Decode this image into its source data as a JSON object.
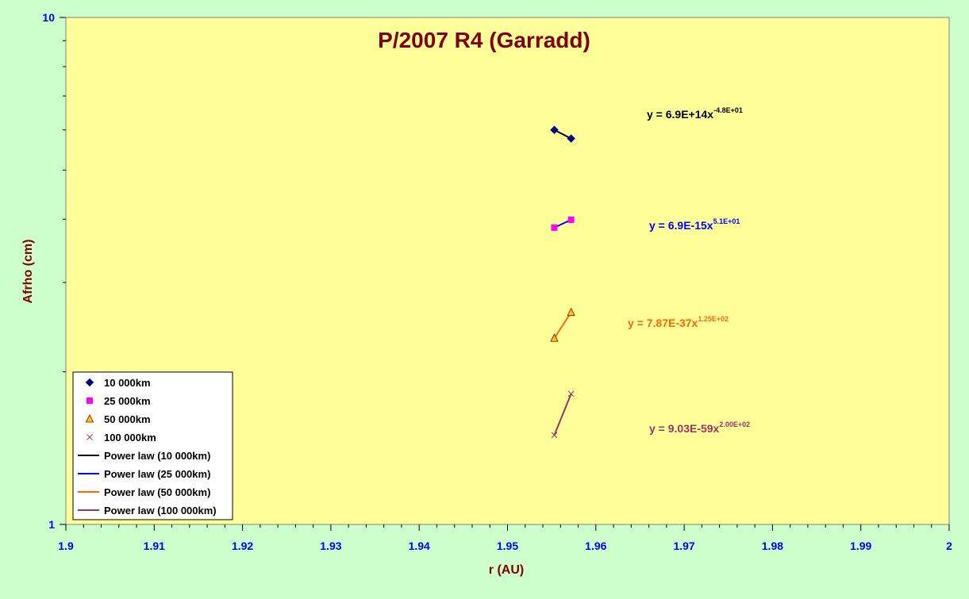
{
  "chart_data": {
    "type": "scatter",
    "title": "P/2007 R4 (Garradd)",
    "xlabel": "r (AU)",
    "ylabel": "Afrho (cm)",
    "xlim": [
      1.9,
      2.0
    ],
    "ylim": [
      1,
      10
    ],
    "yscale": "log",
    "xticks": [
      "1.9",
      "1.91",
      "1.92",
      "1.93",
      "1.94",
      "1.95",
      "1.96",
      "1.97",
      "1.98",
      "1.99",
      "2"
    ],
    "yticks": [
      "1",
      "10"
    ],
    "grid": false,
    "legend_position": "bottom-left",
    "series": [
      {
        "name": "10 000km",
        "marker": "diamond",
        "color": "#000080",
        "x": [
          1.9553,
          1.9572
        ],
        "y": [
          6.0,
          5.77
        ],
        "trend_name": "Power law (10 000km)",
        "trend_color": "#000000",
        "equation": {
          "base": "y = 6.9E+14x",
          "exponent": "-4.8E+01"
        }
      },
      {
        "name": "25 000km",
        "marker": "square",
        "color": "#ff00ff",
        "x": [
          1.9553,
          1.9572
        ],
        "y": [
          3.85,
          3.99
        ],
        "trend_name": "Power law (25 000km)",
        "trend_color": "#0000ff",
        "equation": {
          "base": "y = 6.9E-15x",
          "exponent": "5.1E+01"
        }
      },
      {
        "name": "50 000km",
        "marker": "triangle",
        "color": "#ffcc00",
        "x": [
          1.9553,
          1.9572
        ],
        "y": [
          2.33,
          2.62
        ],
        "trend_name": "Power law (50 000km)",
        "trend_color": "#ff6600",
        "equation": {
          "base": "y = 7.87E-37x",
          "exponent": "1.25E+02"
        }
      },
      {
        "name": "100 000km",
        "marker": "x",
        "color": "#993366",
        "x": [
          1.9553,
          1.9572
        ],
        "y": [
          1.5,
          1.81
        ],
        "trend_name": "Power law (100 000km)",
        "trend_color": "#993366",
        "equation": {
          "base": "y = 9.03E-59x",
          "exponent": "2.00E+02"
        }
      }
    ]
  }
}
